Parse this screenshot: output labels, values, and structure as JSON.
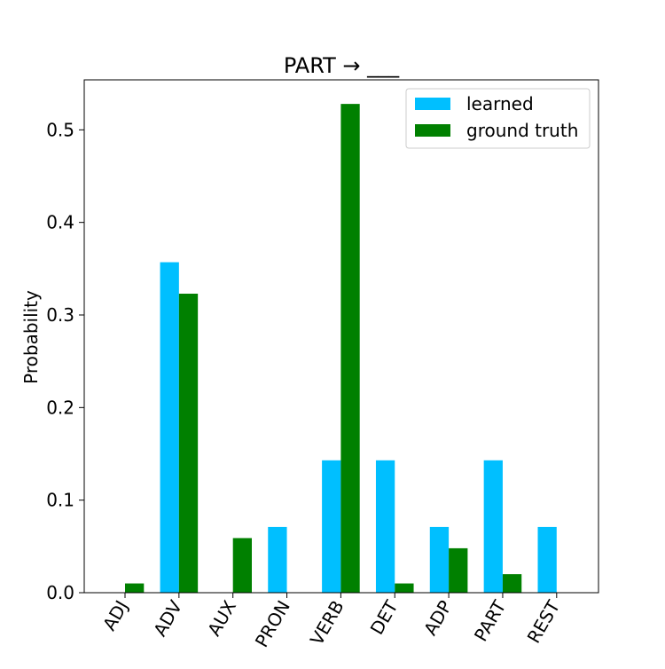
{
  "chart_data": {
    "type": "bar",
    "title": "PART → ___",
    "xlabel": "",
    "ylabel": "Probability",
    "categories": [
      "ADJ",
      "ADV",
      "AUX",
      "PRON",
      "VERB",
      "DET",
      "ADP",
      "PART",
      "REST"
    ],
    "series": [
      {
        "name": "learned",
        "color": "#00bfff",
        "values": [
          0.0,
          0.357,
          0.0,
          0.071,
          0.143,
          0.143,
          0.071,
          0.143,
          0.071
        ]
      },
      {
        "name": "ground truth",
        "color": "#008000",
        "values": [
          0.01,
          0.323,
          0.059,
          0.0,
          0.528,
          0.01,
          0.048,
          0.02,
          0.0
        ]
      }
    ],
    "ylim": [
      0,
      0.554
    ],
    "yticks": [
      "0.0",
      "0.1",
      "0.2",
      "0.3",
      "0.4",
      "0.5"
    ],
    "grid": false,
    "legend_position": "top-right"
  }
}
